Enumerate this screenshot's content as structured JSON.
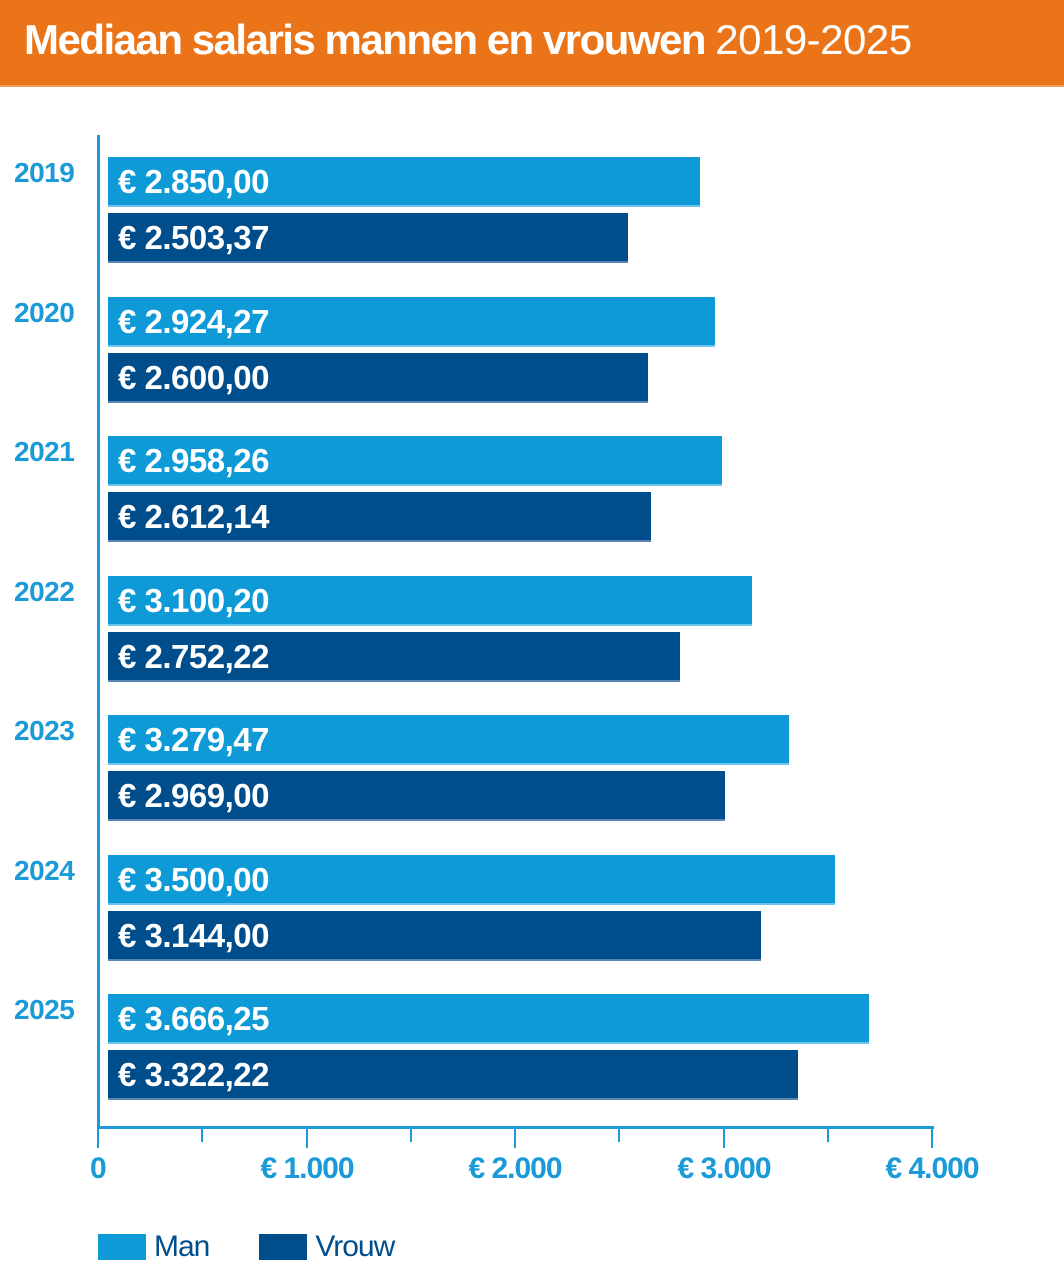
{
  "header": {
    "title_main": "Mediaan salaris mannen en vrouwen",
    "title_years": "2019-2025"
  },
  "colors": {
    "header_bg": "#ea7417",
    "man": "#0d9ad7",
    "vrouw": "#004d8c",
    "axis": "#1a9ad6"
  },
  "axis": {
    "ticks": [
      "0",
      "€ 1.000",
      "€ 2.000",
      "€ 3.000",
      "€ 4.000"
    ]
  },
  "legend": {
    "man": "Man",
    "vrouw": "Vrouw"
  },
  "rows": [
    {
      "year": "2019",
      "man_label": "€ 2.850,00",
      "vrouw_label": "€ 2.503,37"
    },
    {
      "year": "2020",
      "man_label": "€ 2.924,27",
      "vrouw_label": "€ 2.600,00"
    },
    {
      "year": "2021",
      "man_label": "€ 2.958,26",
      "vrouw_label": "€ 2.612,14"
    },
    {
      "year": "2022",
      "man_label": "€ 3.100,20",
      "vrouw_label": "€ 2.752,22"
    },
    {
      "year": "2023",
      "man_label": "€ 3.279,47",
      "vrouw_label": "€ 2.969,00"
    },
    {
      "year": "2024",
      "man_label": "€ 3.500,00",
      "vrouw_label": "€ 3.144,00"
    },
    {
      "year": "2025",
      "man_label": "€ 3.666,25",
      "vrouw_label": "€ 3.322,22"
    }
  ],
  "chart_data": {
    "type": "bar",
    "orientation": "horizontal",
    "title": "Mediaan salaris mannen en vrouwen 2019-2025",
    "categories": [
      "2019",
      "2020",
      "2021",
      "2022",
      "2023",
      "2024",
      "2025"
    ],
    "series": [
      {
        "name": "Man",
        "color": "#0d9ad7",
        "values": [
          2850.0,
          2924.27,
          2958.26,
          3100.2,
          3279.47,
          3500.0,
          3666.25
        ]
      },
      {
        "name": "Vrouw",
        "color": "#004d8c",
        "values": [
          2503.37,
          2600.0,
          2612.14,
          2752.22,
          2969.0,
          3144.0,
          3322.22
        ]
      }
    ],
    "xlabel": "",
    "ylabel": "",
    "xlim": [
      0,
      4000
    ],
    "xticks": [
      "0",
      "€ 1.000",
      "€ 2.000",
      "€ 3.000",
      "€ 4.000"
    ],
    "grid": false,
    "legend_position": "bottom-left"
  }
}
